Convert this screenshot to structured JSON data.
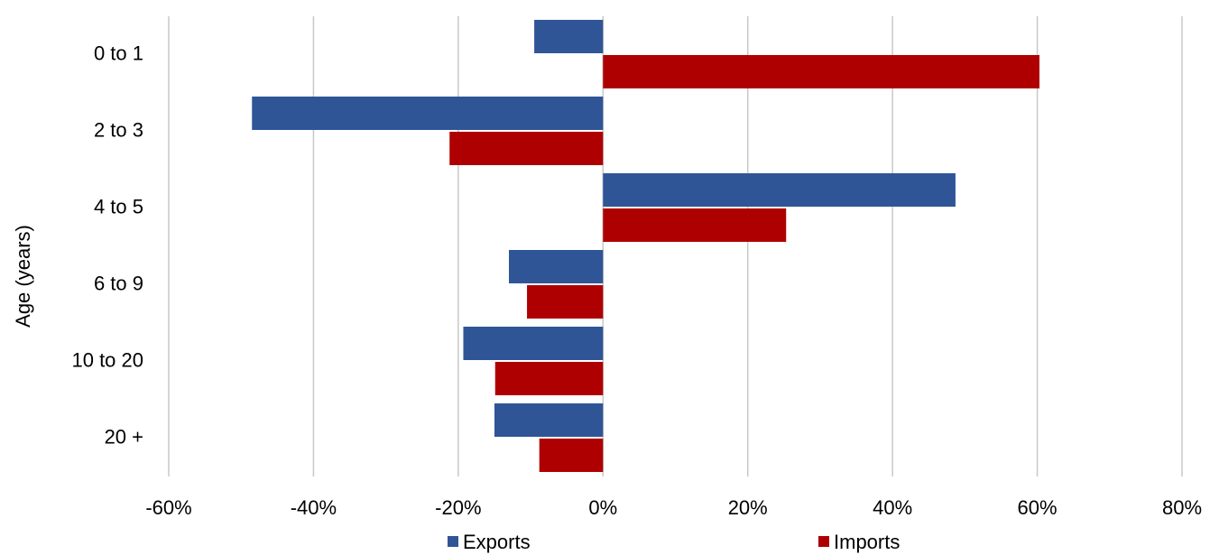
{
  "chart_data": {
    "type": "bar",
    "orientation": "horizontal",
    "categories": [
      "0 to 1",
      "2 to 3",
      "4 to 5",
      "6 to 9",
      "10 to 20",
      "20 +"
    ],
    "series": [
      {
        "name": "Exports",
        "values": [
          -9.5,
          -48.5,
          48.7,
          -13.0,
          -19.3,
          -15.0
        ],
        "color": "#2F5597"
      },
      {
        "name": "Imports",
        "values": [
          60.3,
          -21.2,
          25.3,
          -10.5,
          -14.9,
          -8.8
        ],
        "color": "#AE0000"
      }
    ],
    "title": "",
    "xlabel": "",
    "ylabel": "Age (years)",
    "xlim": [
      -60,
      80
    ],
    "xticks": [
      -60,
      -40,
      -20,
      0,
      20,
      40,
      60,
      80
    ],
    "xtick_labels": [
      "-60%",
      "-40%",
      "-20%",
      "0%",
      "20%",
      "40%",
      "60%",
      "80%"
    ],
    "grid": "vertical",
    "legend": "bottom",
    "gridline_color": "#C8C8C8"
  }
}
